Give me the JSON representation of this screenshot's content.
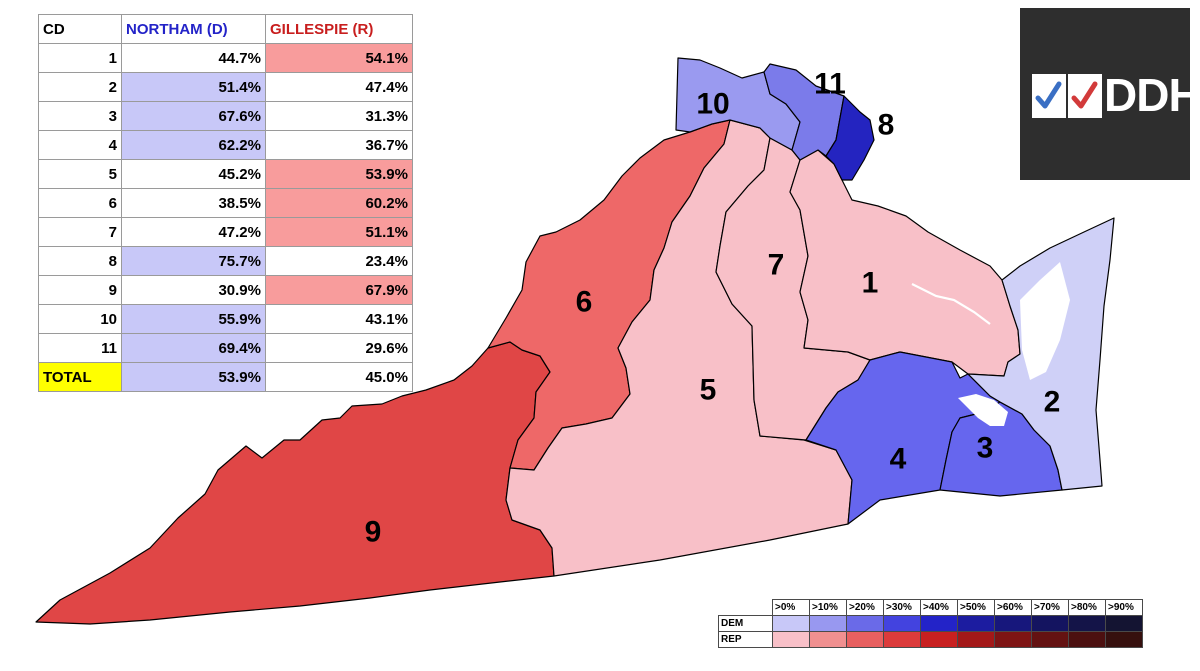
{
  "table": {
    "headers": {
      "cd": "CD",
      "dem": "NORTHAM (D)",
      "rep": "GILLESPIE (R)"
    },
    "rows": [
      {
        "cd": "1",
        "dem": "44.7%",
        "rep": "54.1%",
        "winner": "R"
      },
      {
        "cd": "2",
        "dem": "51.4%",
        "rep": "47.4%",
        "winner": "D"
      },
      {
        "cd": "3",
        "dem": "67.6%",
        "rep": "31.3%",
        "winner": "D"
      },
      {
        "cd": "4",
        "dem": "62.2%",
        "rep": "36.7%",
        "winner": "D"
      },
      {
        "cd": "5",
        "dem": "45.2%",
        "rep": "53.9%",
        "winner": "R"
      },
      {
        "cd": "6",
        "dem": "38.5%",
        "rep": "60.2%",
        "winner": "R"
      },
      {
        "cd": "7",
        "dem": "47.2%",
        "rep": "51.1%",
        "winner": "R"
      },
      {
        "cd": "8",
        "dem": "75.7%",
        "rep": "23.4%",
        "winner": "D"
      },
      {
        "cd": "9",
        "dem": "30.9%",
        "rep": "67.9%",
        "winner": "R"
      },
      {
        "cd": "10",
        "dem": "55.9%",
        "rep": "43.1%",
        "winner": "D"
      },
      {
        "cd": "11",
        "dem": "69.4%",
        "rep": "29.6%",
        "winner": "D"
      }
    ],
    "total": {
      "label": "TOTAL",
      "dem": "53.9%",
      "rep": "45.0%",
      "winner": "D"
    }
  },
  "logo": {
    "text": "DDHQ"
  },
  "map": {
    "district_labels": [
      "1",
      "2",
      "3",
      "4",
      "5",
      "6",
      "7",
      "8",
      "9",
      "10",
      "11"
    ]
  },
  "legend": {
    "headers": [
      ">0%",
      ">10%",
      ">20%",
      ">30%",
      ">40%",
      ">50%",
      ">60%",
      ">70%",
      ">80%",
      ">90%"
    ],
    "rows": {
      "dem": "DEM",
      "rep": "REP"
    },
    "dem_colors": [
      "#c8c8f8",
      "#9898f0",
      "#6a6ae8",
      "#4343df",
      "#2323c8",
      "#1c1ca0",
      "#17177c",
      "#141460",
      "#141448",
      "#141432"
    ],
    "rep_colors": [
      "#f8c0c8",
      "#f09090",
      "#e86060",
      "#dc3b3b",
      "#c82020",
      "#a31818",
      "#7e1414",
      "#641212",
      "#4c1010",
      "#36100e"
    ]
  },
  "colors": {
    "dem_header": "#2323c8",
    "rep_header": "#c81e1e",
    "dem_cell": "#c8c8f8",
    "rep_cell": "#f89c9c",
    "total_highlight": "#ffff00",
    "logo_bg": "#2e2e2e",
    "district_fill": {
      "1": "#f8c0c8",
      "2": "#cfd0f7",
      "3": "#6666ee",
      "4": "#6666ee",
      "5": "#f8c0c8",
      "6": "#ee6868",
      "7": "#f8c0c8",
      "8": "#2424c0",
      "9": "#e04646",
      "10": "#9a9af0",
      "11": "#7b7bea"
    }
  }
}
